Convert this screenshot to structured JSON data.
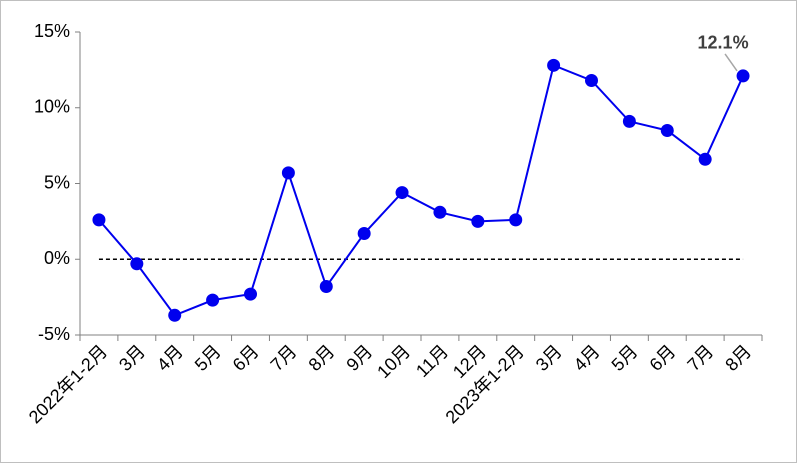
{
  "chart_data": {
    "type": "line",
    "categories": [
      "2022年1-2月",
      "3月",
      "4月",
      "5月",
      "6月",
      "7月",
      "8月",
      "9月",
      "10月",
      "11月",
      "12月",
      "2023年1-2月",
      "3月",
      "4月",
      "5月",
      "6月",
      "7月",
      "8月"
    ],
    "series": [
      {
        "color": "#0000ee",
        "values": [
          2.6,
          -0.3,
          -3.7,
          -2.7,
          -2.3,
          5.7,
          -1.8,
          1.7,
          4.4,
          3.1,
          2.5,
          2.6,
          12.8,
          11.8,
          9.1,
          8.5,
          6.6,
          12.1
        ],
        "value_labels": [
          null,
          null,
          null,
          null,
          null,
          null,
          null,
          null,
          null,
          null,
          null,
          null,
          null,
          null,
          null,
          null,
          null,
          "12.1%"
        ]
      }
    ],
    "ylim": [
      -5,
      15
    ],
    "yticks": [
      {
        "value": -5,
        "label": "-5%"
      },
      {
        "value": 0,
        "label": "0%"
      },
      {
        "value": 5,
        "label": "5%"
      },
      {
        "value": 10,
        "label": "10%"
      },
      {
        "value": 15,
        "label": "15%"
      }
    ],
    "grid": false
  }
}
